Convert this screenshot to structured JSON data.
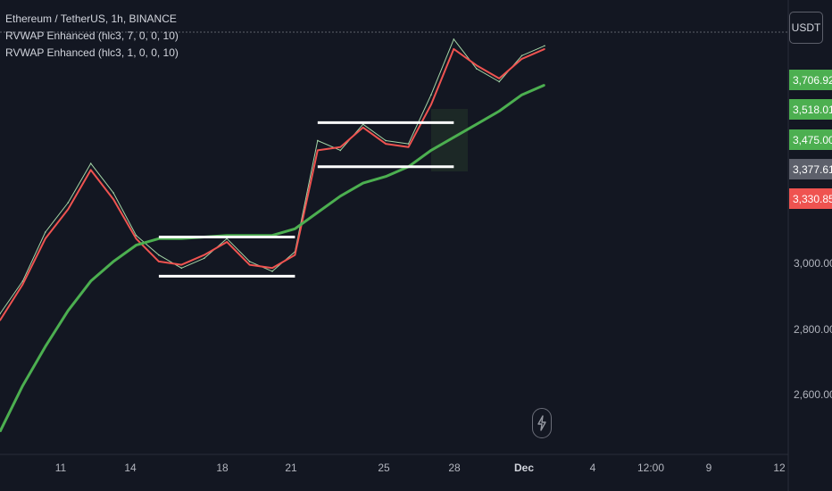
{
  "legend": {
    "title": "Ethereum / TetherUS, 1h, BINANCE",
    "indicator1": "RVWAP Enhanced (hlc3, 7, 0, 0, 10)",
    "indicator2": "RVWAP Enhanced (hlc3, 1, 0, 0, 10)"
  },
  "currency_button": "USDT",
  "price_tags": [
    {
      "text": "3,706.92",
      "color": "#4caf50"
    },
    {
      "text": "3,518.01",
      "color": "#4caf50"
    },
    {
      "text": "3,475.00",
      "color": "#4caf50"
    },
    {
      "text": "3,377.61",
      "color": "#5d606b"
    },
    {
      "text": "3,330.85",
      "color": "#ef5350"
    }
  ],
  "price_axis_labels": [
    "3,000.00",
    "2,800.00",
    "2,600.00"
  ],
  "time_labels": [
    {
      "text": "11",
      "bold": false
    },
    {
      "text": "14",
      "bold": false
    },
    {
      "text": "18",
      "bold": false
    },
    {
      "text": "21",
      "bold": false
    },
    {
      "text": "25",
      "bold": false
    },
    {
      "text": "28",
      "bold": false
    },
    {
      "text": "Dec",
      "bold": true
    },
    {
      "text": "4",
      "bold": false
    },
    {
      "text": "12:00",
      "bold": false
    },
    {
      "text": "9",
      "bold": false
    },
    {
      "text": "12",
      "bold": false
    }
  ],
  "chart_data": {
    "type": "line",
    "title": "Ethereum / TetherUS, 1h, BINANCE",
    "ylim": [
      2490,
      3880
    ],
    "x": [
      "Nov 8",
      "Nov 9",
      "Nov 10",
      "Nov 11",
      "Nov 12",
      "Nov 13",
      "Nov 14",
      "Nov 15",
      "Nov 16",
      "Nov 17",
      "Nov 18",
      "Nov 19",
      "Nov 20",
      "Nov 21",
      "Nov 22",
      "Nov 23",
      "Nov 24",
      "Nov 25",
      "Nov 26",
      "Nov 27",
      "Nov 28",
      "Nov 29",
      "Nov 30",
      "Dec 1",
      "Dec 2"
    ],
    "series": [
      {
        "values": [
          2920,
          3020,
          3170,
          3260,
          3380,
          3290,
          3160,
          3100,
          3060,
          3090,
          3150,
          3080,
          3050,
          3110,
          3450,
          3420,
          3500,
          3450,
          3440,
          3590,
          3760,
          3670,
          3630,
          3710,
          3740
        ],
        "color": "#a5d6a7"
      },
      {
        "values": [
          2900,
          3010,
          3150,
          3240,
          3360,
          3270,
          3150,
          3080,
          3070,
          3100,
          3140,
          3070,
          3060,
          3100,
          3420,
          3430,
          3490,
          3440,
          3430,
          3560,
          3730,
          3680,
          3640,
          3700,
          3730
        ],
        "color": "#ef5350"
      },
      {
        "values": [
          2560,
          2700,
          2820,
          2930,
          3020,
          3080,
          3130,
          3150,
          3150,
          3155,
          3160,
          3160,
          3160,
          3180,
          3230,
          3280,
          3320,
          3340,
          3370,
          3420,
          3460,
          3500,
          3540,
          3590,
          3620
        ],
        "color": "#4caf50"
      }
    ],
    "levels": [
      {
        "from": "Nov 15",
        "to": "Nov 21",
        "value": 3155,
        "color": "#ffffff"
      },
      {
        "from": "Nov 15",
        "to": "Nov 21",
        "value": 3035,
        "color": "#ffffff"
      },
      {
        "from": "Nov 22",
        "to": "Nov 28",
        "value": 3505,
        "color": "#ffffff"
      },
      {
        "from": "Nov 22",
        "to": "Nov 28",
        "value": 3370,
        "color": "#ffffff"
      }
    ]
  }
}
